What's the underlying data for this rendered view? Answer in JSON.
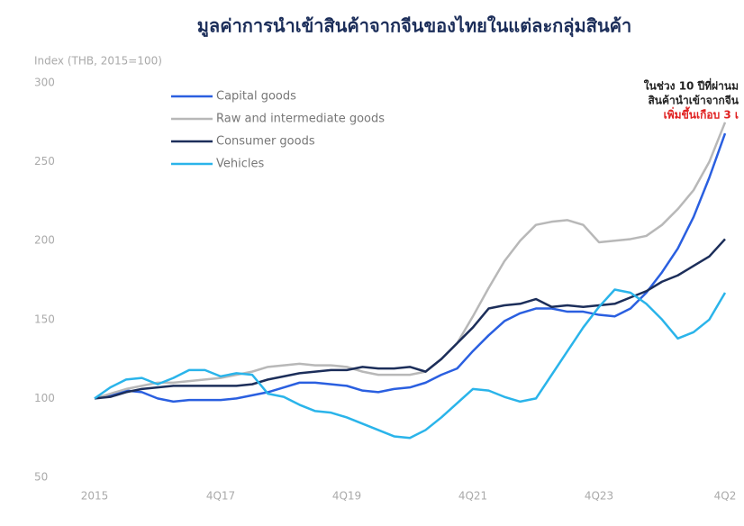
{
  "chart_data": {
    "type": "line",
    "title": "มูลค่าการนำเข้าสินค้าจากจีนของไทยในแต่ละกลุ่มสินค้า",
    "y_label": "Index (THB, 2015=100)",
    "annotation": [
      "ในช่วง 10 ปีที่ผ่านม",
      "สินค้านำเข้าจากจีน",
      "เพิ่มขึ้นเกือบ 3 เ"
    ],
    "categories": [
      "2015",
      null,
      null,
      null,
      null,
      null,
      null,
      null,
      "4Q17",
      null,
      null,
      null,
      null,
      null,
      null,
      null,
      "4Q19",
      null,
      null,
      null,
      null,
      null,
      null,
      null,
      "4Q21",
      null,
      null,
      null,
      null,
      null,
      null,
      null,
      "4Q23",
      null,
      null,
      null,
      null,
      null,
      null,
      null,
      "4Q2"
    ],
    "ylim": [
      50,
      300
    ],
    "yticks": [
      50,
      100,
      150,
      200,
      250,
      300
    ],
    "legend": "upper left",
    "series": [
      {
        "name": "Capital goods",
        "color": "#2a5fe0",
        "values": [
          100,
          102,
          105,
          104,
          100,
          98,
          99,
          99,
          99,
          100,
          102,
          104,
          107,
          110,
          110,
          109,
          108,
          105,
          104,
          106,
          107,
          110,
          115,
          119,
          130,
          140,
          149,
          154,
          157,
          157,
          155,
          155,
          153,
          152,
          157,
          167,
          180,
          195,
          215,
          240,
          268
        ]
      },
      {
        "name": "Raw and intermediate goods",
        "color": "#b8b8b8",
        "values": [
          100,
          103,
          106,
          108,
          110,
          110,
          111,
          112,
          113,
          115,
          117,
          120,
          121,
          122,
          121,
          121,
          120,
          117,
          115,
          115,
          115,
          117,
          125,
          135,
          152,
          170,
          187,
          200,
          210,
          212,
          213,
          210,
          199,
          200,
          201,
          203,
          210,
          220,
          232,
          250,
          275
        ]
      },
      {
        "name": "Consumer goods",
        "color": "#1c2e5a",
        "values": [
          100,
          101,
          104,
          106,
          107,
          108,
          108,
          108,
          108,
          108,
          109,
          112,
          114,
          116,
          117,
          118,
          118,
          120,
          119,
          119,
          120,
          117,
          125,
          135,
          145,
          157,
          159,
          160,
          163,
          158,
          159,
          158,
          159,
          160,
          164,
          168,
          174,
          178,
          184,
          190,
          201
        ]
      },
      {
        "name": "Vehicles",
        "color": "#2ab4ea",
        "values": [
          100,
          107,
          112,
          113,
          109,
          113,
          118,
          118,
          114,
          116,
          115,
          103,
          101,
          96,
          92,
          91,
          88,
          84,
          80,
          76,
          75,
          80,
          88,
          97,
          106,
          105,
          101,
          98,
          100,
          115,
          130,
          145,
          158,
          169,
          167,
          160,
          150,
          138,
          142,
          150,
          167
        ]
      }
    ]
  }
}
